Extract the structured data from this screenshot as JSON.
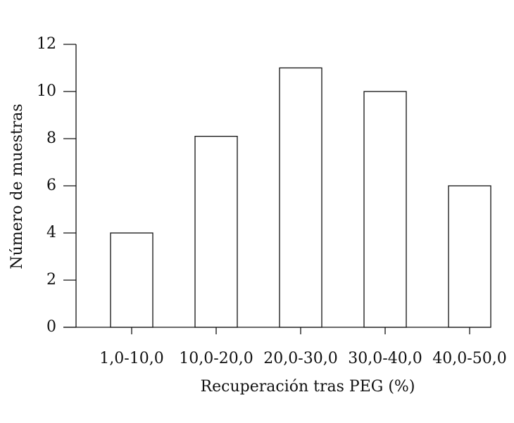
{
  "chart_data": {
    "type": "bar",
    "x_label": "Recuperación tras PEG (%)",
    "y_label": "Número de muestras",
    "categories": [
      "1,0-10,0",
      "10,0-20,0",
      "20,0-30,0",
      "30,0-40,0",
      "40,0-50,0"
    ],
    "values": [
      4,
      8.1,
      11,
      10,
      6
    ],
    "color": "#ffffff",
    "ylim": [
      0,
      12
    ],
    "yticks": [
      0,
      2,
      4,
      6,
      8,
      10,
      12
    ],
    "grid": false
  }
}
